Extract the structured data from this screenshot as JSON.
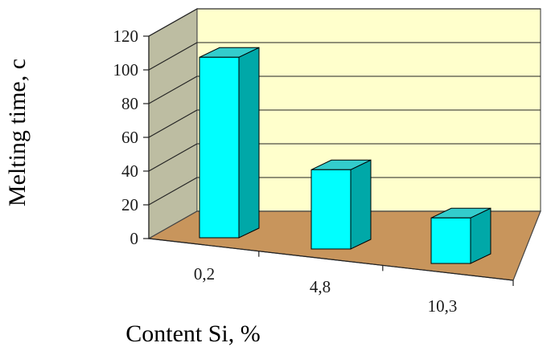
{
  "chart_data": {
    "type": "bar",
    "title": "",
    "xlabel": "Content Si, %",
    "ylabel": "Melting time, c",
    "categories": [
      "0,2",
      "4,8",
      "10,3"
    ],
    "values": [
      107,
      47,
      27
    ],
    "ylim": [
      0,
      120
    ],
    "yticks": [
      "0",
      "20",
      "40",
      "60",
      "80",
      "100",
      "120"
    ],
    "grid": true,
    "legend": "none",
    "three_d": true,
    "colors": {
      "bar_front": "#00ffff",
      "bar_side": "#00a8a8",
      "bar_top": "#33cccc",
      "back_wall": "#ffffcc",
      "side_wall": "#bdbda2",
      "floor": "#c8955c"
    }
  }
}
